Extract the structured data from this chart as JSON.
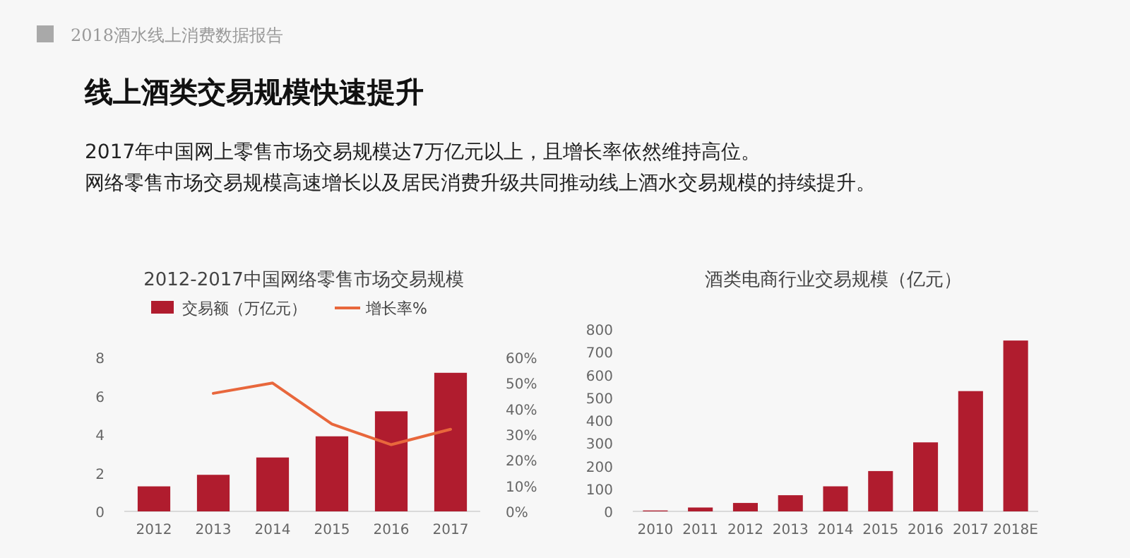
{
  "chart_data": [
    {
      "type": "other",
      "title": "线上酒类交易规模快速提升",
      "annotations": [
        "2018酒水线上消费数据报告",
        "2017年中国网上零售市场交易规模达7万亿元以上，且增长率依然维持高位。",
        "网络零售市场交易规模高速增长以及居民消费升级共同推动线上酒水交易规模的持续提升。"
      ]
    },
    {
      "type": "bar",
      "title": "2012-2017中国网络零售市场交易规模",
      "categories": [
        "2012",
        "2013",
        "2014",
        "2015",
        "2016",
        "2017"
      ],
      "series": [
        {
          "name": "交易额（万亿元）",
          "type": "bar",
          "color": "#b01c2e",
          "values": [
            1.3,
            1.9,
            2.8,
            3.9,
            5.2,
            7.2
          ]
        },
        {
          "name": "增长率%",
          "type": "line",
          "axis": "y2",
          "color": "#e8673c",
          "values": [
            null,
            46,
            50,
            34,
            26,
            32
          ]
        }
      ],
      "ylim": [
        0,
        8
      ],
      "yticks": [
        0,
        2,
        4,
        6,
        8
      ],
      "y2lim": [
        0,
        60
      ],
      "y2ticks": [
        {
          "value": 0,
          "label": "0%"
        },
        {
          "value": 10,
          "label": "10%"
        },
        {
          "value": 20,
          "label": "20%"
        },
        {
          "value": 30,
          "label": "30%"
        },
        {
          "value": 40,
          "label": "40%"
        },
        {
          "value": 50,
          "label": "50%"
        },
        {
          "value": 60,
          "label": "60%"
        }
      ],
      "legend": "top"
    },
    {
      "type": "bar",
      "title": "酒类电商行业交易规模（亿元）",
      "categories": [
        "2010",
        "2011",
        "2012",
        "2013",
        "2014",
        "2015",
        "2016",
        "2017",
        "2018E"
      ],
      "values": [
        4,
        17,
        37,
        71,
        110,
        177,
        303,
        528,
        750
      ],
      "color": "#b01c2e",
      "ylim": [
        0,
        800
      ],
      "yticks": [
        0,
        100,
        200,
        300,
        400,
        500,
        600,
        700,
        800
      ]
    }
  ]
}
